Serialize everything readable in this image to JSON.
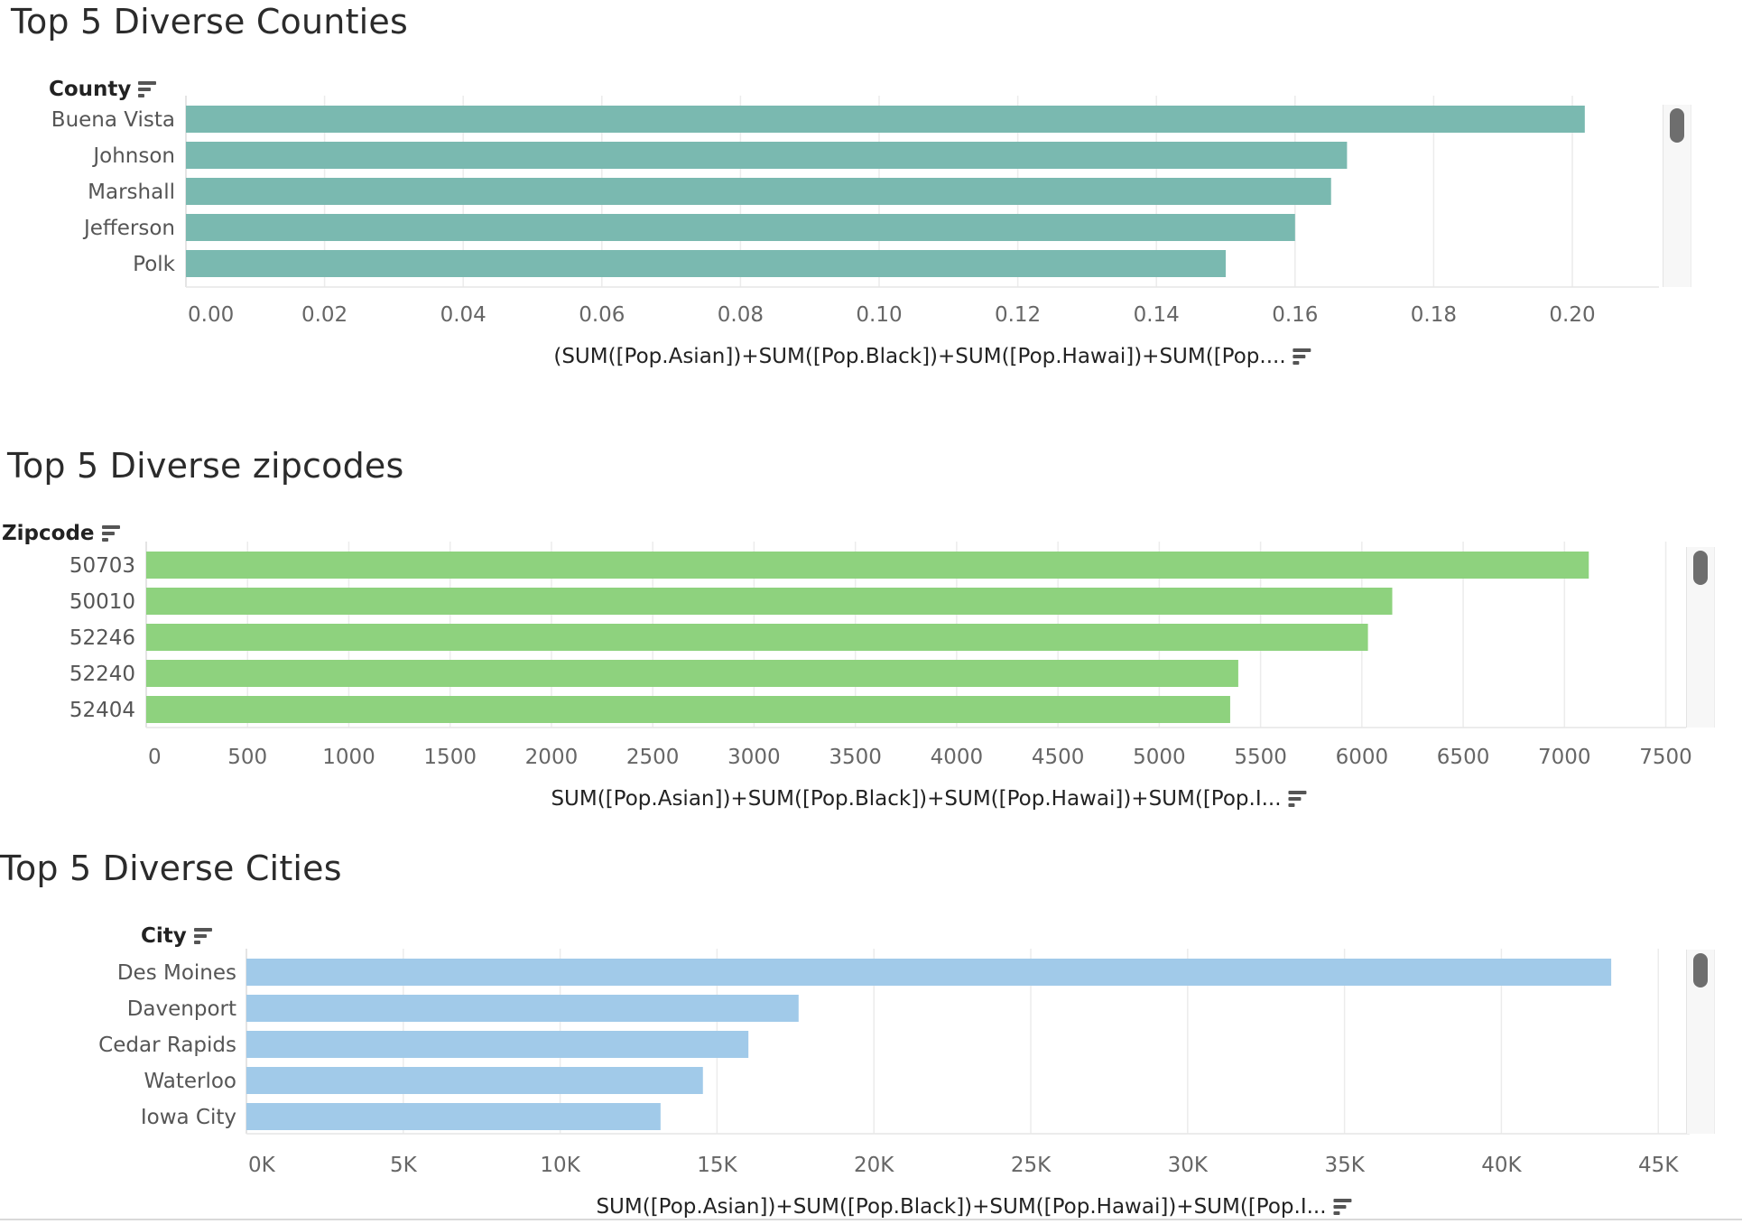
{
  "chart_data": [
    {
      "type": "bar",
      "orientation": "horizontal",
      "title": "Top 5 Diverse Counties",
      "dimension_label": "County",
      "categories": [
        "Buena Vista",
        "Johnson",
        "Marshall",
        "Jefferson",
        "Polk"
      ],
      "values": [
        0.2018,
        0.1675,
        0.1652,
        0.16,
        0.15
      ],
      "xlim": [
        0,
        0.2125
      ],
      "ticks": [
        0,
        0.02,
        0.04,
        0.06,
        0.08,
        0.1,
        0.12,
        0.14,
        0.16,
        0.18,
        0.2
      ],
      "tick_labels": [
        "0.00",
        "0.02",
        "0.04",
        "0.06",
        "0.08",
        "0.10",
        "0.12",
        "0.14",
        "0.16",
        "0.18",
        "0.20"
      ],
      "xlabel": "(SUM([Pop.Asian])+SUM([Pop.Black])+SUM([Pop.Hawai])+SUM([Pop....",
      "bar_color": "#7ab9b0",
      "grid": true
    },
    {
      "type": "bar",
      "orientation": "horizontal",
      "title": "Top 5 Diverse zipcodes",
      "dimension_label": "Zipcode",
      "categories": [
        "50703",
        "50010",
        "52246",
        "52240",
        "52404"
      ],
      "values": [
        7120,
        6150,
        6030,
        5390,
        5350
      ],
      "xlim": [
        0,
        7600
      ],
      "ticks": [
        0,
        500,
        1000,
        1500,
        2000,
        2500,
        3000,
        3500,
        4000,
        4500,
        5000,
        5500,
        6000,
        6500,
        7000,
        7500
      ],
      "tick_labels": [
        "0",
        "500",
        "1000",
        "1500",
        "2000",
        "2500",
        "3000",
        "3500",
        "4000",
        "4500",
        "5000",
        "5500",
        "6000",
        "6500",
        "7000",
        "7500"
      ],
      "xlabel": "SUM([Pop.Asian])+SUM([Pop.Black])+SUM([Pop.Hawai])+SUM([Pop.I...",
      "bar_color": "#8ed27e",
      "grid": true
    },
    {
      "type": "bar",
      "orientation": "horizontal",
      "title": "Top 5 Diverse Cities",
      "dimension_label": "City",
      "categories": [
        "Des Moines",
        "Davenport",
        "Cedar Rapids",
        "Waterloo",
        "Iowa City"
      ],
      "values": [
        43500,
        17600,
        16000,
        14550,
        13200
      ],
      "xlim": [
        0,
        46000
      ],
      "ticks": [
        0,
        5000,
        10000,
        15000,
        20000,
        25000,
        30000,
        35000,
        40000,
        45000
      ],
      "tick_labels": [
        "0K",
        "5K",
        "10K",
        "15K",
        "20K",
        "25K",
        "30K",
        "35K",
        "40K",
        "45K"
      ],
      "xlabel": "SUM([Pop.Asian])+SUM([Pop.Black])+SUM([Pop.Hawai])+SUM([Pop.I...",
      "bar_color": "#a1cae9",
      "grid": true
    }
  ],
  "icons": {
    "sort": "sort-descending-icon"
  }
}
